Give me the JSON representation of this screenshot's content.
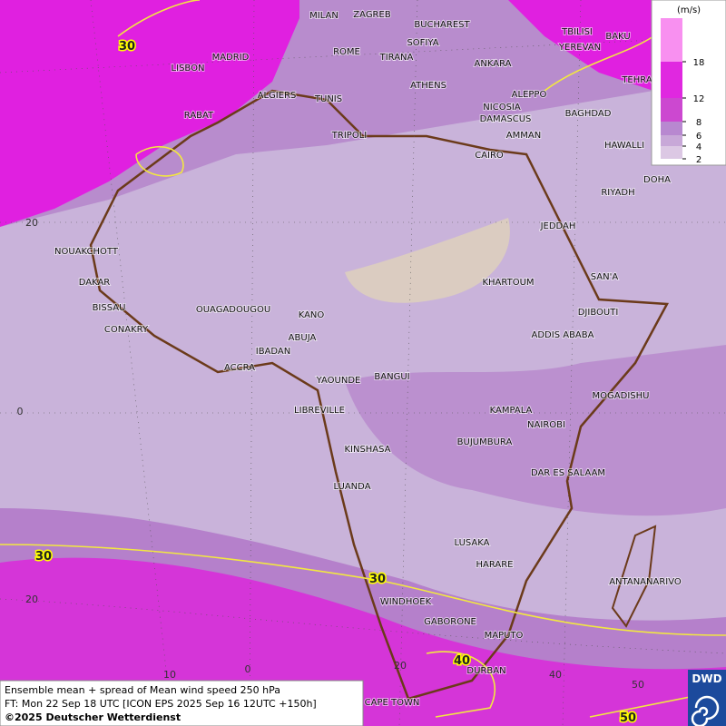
{
  "map": {
    "cities": [
      "MILAN",
      "ZAGREB",
      "BUCHAREST",
      "SOFIYA",
      "ROME",
      "TIRANA",
      "ANKARA",
      "TBILISI",
      "YEREVAN",
      "BAKU",
      "TEHRA",
      "MADRID",
      "LISBON",
      "ALGIERS",
      "TUNIS",
      "ATHENS",
      "ALEPPO",
      "NICOSIA",
      "BAGHDAD",
      "DAMASCUS",
      "AMMAN",
      "TRIPOLI",
      "RABAT",
      "HAWALLI",
      "CAIRO",
      "DOHA",
      "RIYADH",
      "JEDDAH",
      "NOUAKCHOTT",
      "SAN'A",
      "KHARTOUM",
      "DAKAR",
      "BISSAU",
      "OUAGADOUGOU",
      "DJIBOUTI",
      "KANO",
      "CONAKRY",
      "ABUJA",
      "ADDIS ABABA",
      "IBADAN",
      "ACCRA",
      "YAOUNDE",
      "BANGUI",
      "MOGADISHU",
      "LIBREVILLE",
      "KAMPALA",
      "NAIROBI",
      "KINSHASA",
      "BUJUMBURA",
      "DAR ES SALAAM",
      "LUANDA",
      "LUSAKA",
      "HARARE",
      "ANTANANARIVO",
      "WINDHOEK",
      "GABORONE",
      "MAPUTO",
      "DURBAN",
      "CAPE TOWN"
    ],
    "contour_labels": [
      "30",
      "30",
      "30",
      "40",
      "50"
    ],
    "lat_labels": [
      "20",
      "0",
      "20"
    ],
    "lon_labels": [
      "10",
      "0",
      "20",
      "40",
      "50"
    ]
  },
  "legend": {
    "unit": "(m/s)",
    "ticks": [
      2,
      4,
      6,
      8,
      12,
      18
    ]
  },
  "footer": {
    "lines": [
      "Ensemble mean + spread of Mean wind speed 250 hPa",
      "FT: Mon 22 Sep 18 UTC [ICON EPS 2025 Sep 16 12UTC +150h]",
      "©2025 Deutscher Wetterdienst"
    ]
  },
  "logo": "DWD"
}
